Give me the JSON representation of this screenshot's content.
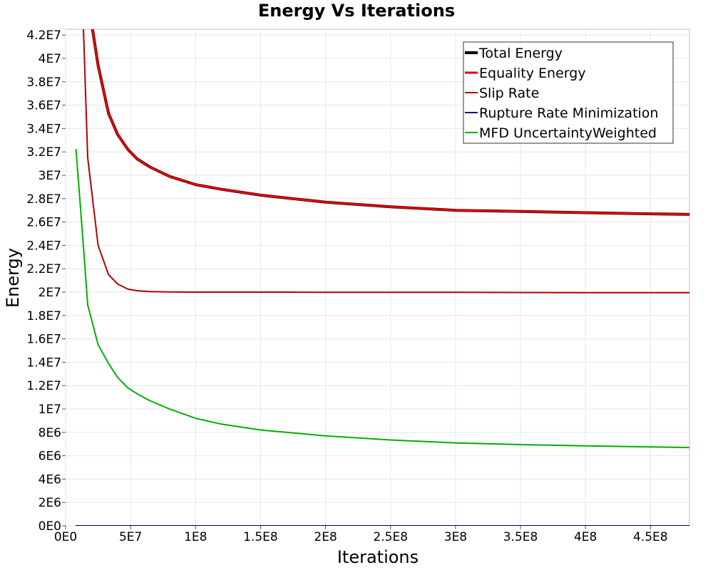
{
  "chart_data": {
    "type": "line",
    "title": "Energy Vs Iterations",
    "xlabel": "Iterations",
    "ylabel": "Energy",
    "xlim": [
      0,
      480000000
    ],
    "ylim": [
      0,
      42500000
    ],
    "grid": true,
    "legend_position": "top-right",
    "x_ticks": [
      0,
      50000000,
      100000000,
      150000000,
      200000000,
      250000000,
      300000000,
      350000000,
      400000000,
      450000000
    ],
    "x_tick_labels": [
      "0E0",
      "5E7",
      "1E8",
      "1.5E8",
      "2E8",
      "2.5E8",
      "3E8",
      "3.5E8",
      "4E8",
      "4.5E8"
    ],
    "y_ticks": [
      0,
      2000000,
      4000000,
      6000000,
      8000000,
      10000000,
      12000000,
      14000000,
      16000000,
      18000000,
      20000000,
      22000000,
      24000000,
      26000000,
      28000000,
      30000000,
      32000000,
      34000000,
      36000000,
      38000000,
      40000000,
      42000000
    ],
    "y_tick_labels": [
      "0E0",
      "2E6",
      "4E6",
      "6E6",
      "8E6",
      "1E7",
      "1.2E7",
      "1.4E7",
      "1.6E7",
      "1.8E7",
      "2E7",
      "2.2E7",
      "2.4E7",
      "2.6E7",
      "2.8E7",
      "3E7",
      "3.2E7",
      "3.4E7",
      "3.6E7",
      "3.8E7",
      "4E7",
      "4.2E7"
    ],
    "series": [
      {
        "name": "Total Energy",
        "color": "#000000",
        "width": 4,
        "x": [
          13000000,
          20000000,
          25000000,
          33000000,
          40000000,
          48000000,
          55000000,
          65000000,
          80000000,
          100000000,
          120000000,
          150000000,
          200000000,
          250000000,
          300000000,
          350000000,
          400000000,
          450000000,
          480000000
        ],
        "y": [
          45000000,
          43000000,
          39400000,
          35300000,
          33500000,
          32200000,
          31400000,
          30700000,
          29900000,
          29200000,
          28800000,
          28300000,
          27700000,
          27300000,
          27000000,
          26900000,
          26800000,
          26700000,
          26650000
        ]
      },
      {
        "name": "Equality Energy",
        "color": "#e00000",
        "width": 3,
        "x": [
          13000000,
          20000000,
          25000000,
          33000000,
          40000000,
          48000000,
          55000000,
          65000000,
          80000000,
          100000000,
          120000000,
          150000000,
          200000000,
          250000000,
          300000000,
          350000000,
          400000000,
          450000000,
          480000000
        ],
        "y": [
          45000000,
          43000000,
          39400000,
          35300000,
          33500000,
          32200000,
          31400000,
          30700000,
          29900000,
          29200000,
          28800000,
          28300000,
          27700000,
          27300000,
          27000000,
          26900000,
          26800000,
          26700000,
          26650000
        ]
      },
      {
        "name": "Slip Rate",
        "color": "#b00000",
        "width": 2,
        "x": [
          13000000,
          17000000,
          25000000,
          33000000,
          40000000,
          48000000,
          55000000,
          65000000,
          80000000,
          100000000,
          150000000,
          200000000,
          300000000,
          400000000,
          480000000
        ],
        "y": [
          45000000,
          31500000,
          24000000,
          21500000,
          20700000,
          20250000,
          20120000,
          20050000,
          20020000,
          20000000,
          20000000,
          19990000,
          19980000,
          19960000,
          19950000
        ]
      },
      {
        "name": "Rupture Rate Minimization",
        "color": "#000080",
        "width": 2,
        "x": [
          8000000,
          480000000
        ],
        "y": [
          0,
          0
        ]
      },
      {
        "name": "MFD UncertaintyWeighted",
        "color": "#00b000",
        "width": 2,
        "x": [
          8000000,
          13000000,
          17000000,
          25000000,
          33000000,
          40000000,
          48000000,
          55000000,
          65000000,
          80000000,
          100000000,
          120000000,
          150000000,
          200000000,
          250000000,
          300000000,
          350000000,
          400000000,
          450000000,
          480000000
        ],
        "y": [
          32200000,
          25000000,
          18900000,
          15500000,
          13900000,
          12700000,
          11800000,
          11300000,
          10700000,
          10000000,
          9200000,
          8700000,
          8200000,
          7700000,
          7350000,
          7100000,
          6950000,
          6850000,
          6750000,
          6700000
        ]
      }
    ]
  }
}
